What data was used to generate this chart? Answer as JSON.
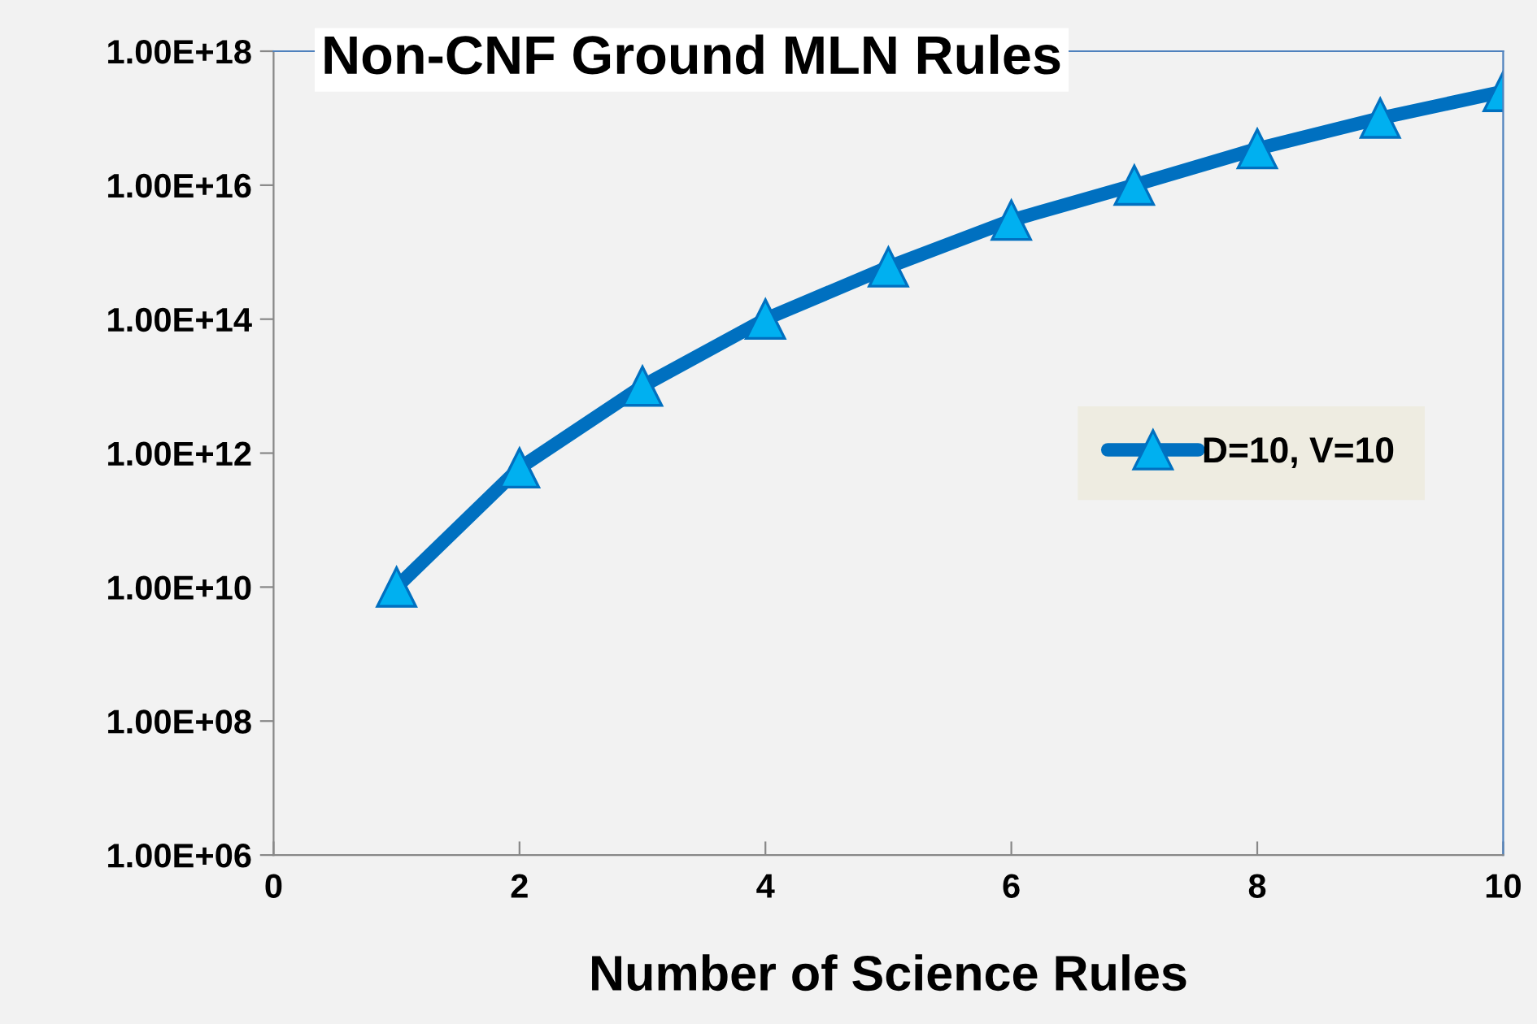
{
  "chart_data": {
    "type": "line",
    "title": "Non-CNF Ground MLN Rules",
    "xlabel": "Number of Science Rules",
    "x": [
      1,
      2,
      3,
      4,
      5,
      6,
      7,
      8,
      9,
      10
    ],
    "series": [
      {
        "name": "D=10, V=10",
        "color": "#0070c0",
        "values": [
          10000000000.0,
          600000000000.0,
          10000000000000.0,
          100000000000000.0,
          600000000000000.0,
          3000000000000000.0,
          1e+16,
          3.5e+16,
          1e+17,
          2.5e+17
        ]
      }
    ],
    "log": "y",
    "xlim": [
      0,
      10
    ],
    "xticks": [
      0,
      2,
      4,
      6,
      8,
      10
    ],
    "ylim": [
      1000000.0,
      1e+18
    ],
    "yticks": [
      {
        "value": 1000000.0,
        "label": "1.00E+06"
      },
      {
        "value": 100000000.0,
        "label": "1.00E+08"
      },
      {
        "value": 10000000000.0,
        "label": "1.00E+10"
      },
      {
        "value": 1000000000000.0,
        "label": "1.00E+12"
      },
      {
        "value": 100000000000000.0,
        "label": "1.00E+14"
      },
      {
        "value": 1e+16,
        "label": "1.00E+16"
      },
      {
        "value": 1e+18,
        "label": "1.00E+18"
      }
    ],
    "marker": "triangle",
    "grid": false,
    "legend": "right"
  }
}
